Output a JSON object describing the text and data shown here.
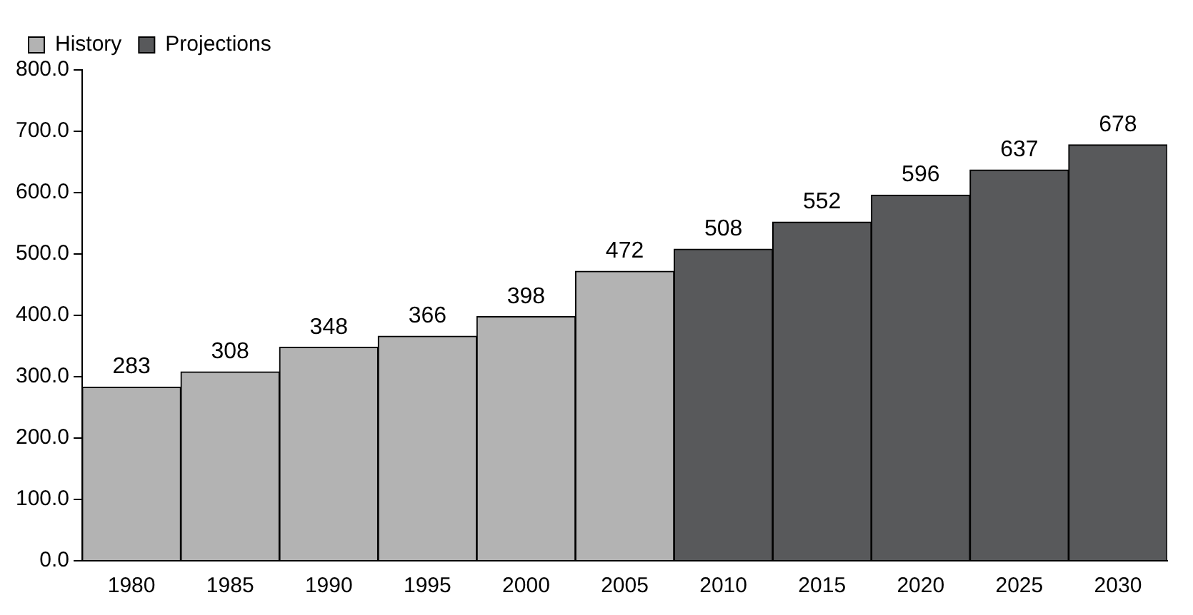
{
  "chart_data": {
    "type": "bar",
    "categories": [
      "1980",
      "1985",
      "1990",
      "1995",
      "2000",
      "2005",
      "2010",
      "2015",
      "2020",
      "2025",
      "2030"
    ],
    "series": [
      {
        "name": "History",
        "color": "#b3b3b3",
        "values": [
          283,
          308,
          348,
          366,
          398,
          472,
          null,
          null,
          null,
          null,
          null
        ]
      },
      {
        "name": "Projections",
        "color": "#58595b",
        "values": [
          null,
          null,
          null,
          null,
          null,
          null,
          508,
          552,
          596,
          637,
          678
        ]
      }
    ],
    "ylim": [
      0,
      800
    ],
    "yticks": [
      {
        "value": 0,
        "label": "0.0"
      },
      {
        "value": 100,
        "label": "100.0"
      },
      {
        "value": 200,
        "label": "200.0"
      },
      {
        "value": 300,
        "label": "300.0"
      },
      {
        "value": 400,
        "label": "400.0"
      },
      {
        "value": 500,
        "label": "500.0"
      },
      {
        "value": 600,
        "label": "600.0"
      },
      {
        "value": 700,
        "label": "700.0"
      },
      {
        "value": 800,
        "label": "800.0"
      }
    ],
    "grid": false,
    "legend": "top left",
    "data_labels": true
  }
}
